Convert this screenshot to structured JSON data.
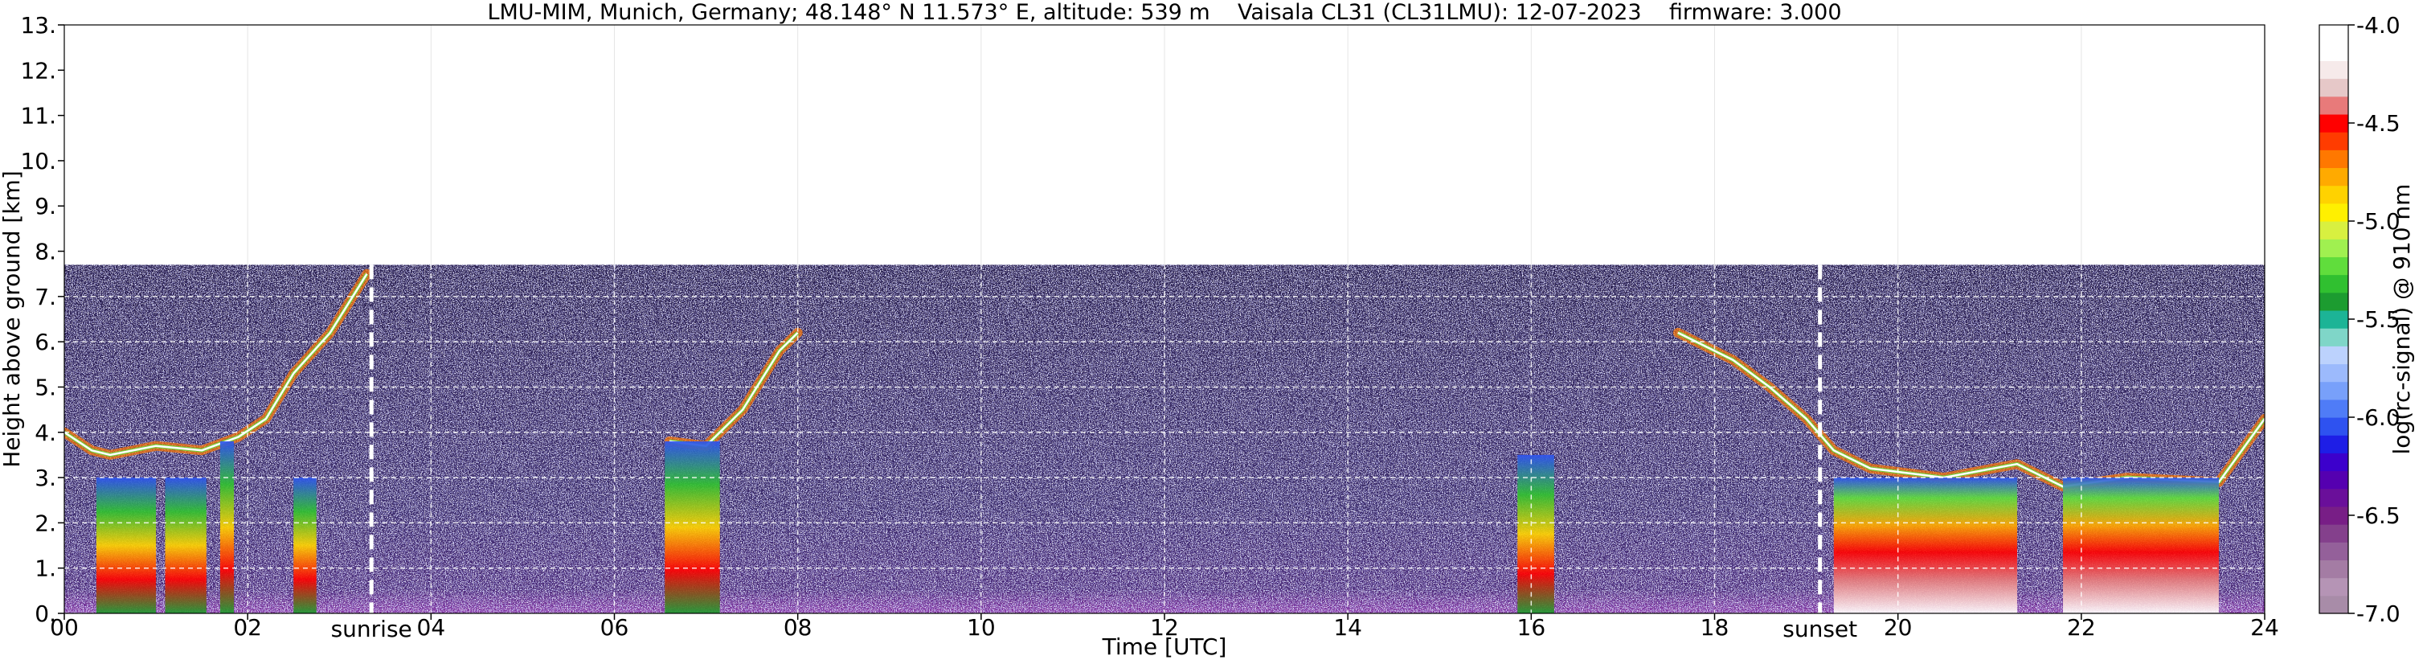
{
  "chart_data": {
    "type": "heatmap",
    "title": "LMU-MIM, Munich, Germany; 48.148° N 11.573° E, altitude: 539 m    Vaisala CL31 (CL31LMU): 12-07-2023    firmware: 3.000",
    "xlabel": "Time [UTC]",
    "ylabel": "Height above ground [km]",
    "xlim": [
      0,
      24
    ],
    "ylim": [
      0,
      13
    ],
    "x_ticks": [
      0,
      2,
      4,
      6,
      8,
      10,
      12,
      14,
      16,
      18,
      20,
      22,
      24
    ],
    "x_tick_labels": [
      "00",
      "02",
      "04",
      "06",
      "08",
      "10",
      "12",
      "14",
      "16",
      "18",
      "20",
      "22",
      "24"
    ],
    "y_ticks": [
      0,
      1,
      2,
      3,
      4,
      5,
      6,
      7,
      8,
      9,
      10,
      11,
      12,
      13
    ],
    "y_tick_labels": [
      "0.",
      "1.",
      "2.",
      "3.",
      "4.",
      "5.",
      "6.",
      "7.",
      "8.",
      "9.",
      "10.",
      "11.",
      "12.",
      "13."
    ],
    "data_top_km": 7.7,
    "colorbar": {
      "label": "log(rc-signal) @ 910 nm",
      "range": [
        -7.0,
        -4.0
      ],
      "ticks": [
        -7.0,
        -6.5,
        -6.0,
        -5.5,
        -5.0,
        -4.5,
        -4.0
      ],
      "tick_labels": [
        "-7.0",
        "-6.5",
        "-6.0",
        "-5.5",
        "-5.0",
        "-4.5",
        "-4.0"
      ],
      "colors": [
        "#a88ca8",
        "#b594b5",
        "#a47ca4",
        "#94609a",
        "#84408c",
        "#781e86",
        "#6a0f9a",
        "#5500b0",
        "#3c00cc",
        "#1e1ee6",
        "#2e52f0",
        "#4f7cf7",
        "#78a0fa",
        "#9cbafc",
        "#bcd2fd",
        "#7fd6c8",
        "#1cb496",
        "#1c9c30",
        "#30c030",
        "#60dd3c",
        "#a0f050",
        "#d8f040",
        "#fff000",
        "#ffd200",
        "#ffaa00",
        "#ff7800",
        "#ff3c00",
        "#ff0000",
        "#e87a7a",
        "#e6c8c8",
        "#f6eaea",
        "#ffffff",
        "#ffffff"
      ]
    },
    "annotations": [
      {
        "type": "vline",
        "x": 3.35,
        "label": "sunrise"
      },
      {
        "type": "vline",
        "x": 19.15,
        "label": "sunset"
      }
    ],
    "features": [
      {
        "kind": "boundary_layer",
        "points": [
          [
            0,
            4.0
          ],
          [
            0.3,
            3.6
          ],
          [
            0.5,
            3.5
          ],
          [
            1.0,
            3.7
          ],
          [
            1.5,
            3.6
          ],
          [
            1.9,
            3.9
          ],
          [
            2.2,
            4.3
          ],
          [
            2.5,
            5.3
          ],
          [
            2.9,
            6.2
          ],
          [
            3.3,
            7.5
          ]
        ]
      },
      {
        "kind": "boundary_layer",
        "points": [
          [
            6.6,
            3.8
          ],
          [
            7.0,
            3.7
          ],
          [
            7.4,
            4.5
          ],
          [
            7.8,
            5.8
          ],
          [
            8.0,
            6.2
          ]
        ]
      },
      {
        "kind": "boundary_layer",
        "points": [
          [
            17.6,
            6.2
          ],
          [
            18.2,
            5.6
          ],
          [
            18.6,
            5.0
          ],
          [
            19.0,
            4.3
          ],
          [
            19.3,
            3.6
          ],
          [
            19.7,
            3.2
          ],
          [
            20.5,
            3.0
          ],
          [
            21.3,
            3.3
          ],
          [
            21.8,
            2.8
          ],
          [
            22.5,
            3.0
          ],
          [
            23.5,
            2.9
          ],
          [
            24,
            4.3
          ]
        ]
      },
      {
        "kind": "cloud_column",
        "x0": 0.35,
        "x1": 1.0,
        "bottom": 0.0,
        "top": 3.0
      },
      {
        "kind": "cloud_column",
        "x0": 1.1,
        "x1": 1.55,
        "bottom": 0.0,
        "top": 3.0
      },
      {
        "kind": "cloud_column",
        "x0": 1.7,
        "x1": 1.85,
        "bottom": 0.0,
        "top": 3.8
      },
      {
        "kind": "cloud_column",
        "x0": 2.5,
        "x1": 2.75,
        "bottom": 0.0,
        "top": 3.0
      },
      {
        "kind": "cloud_column",
        "x0": 6.55,
        "x1": 7.15,
        "bottom": 0.0,
        "top": 3.8
      },
      {
        "kind": "cloud_column",
        "x0": 15.85,
        "x1": 16.25,
        "bottom": 0.0,
        "top": 3.5
      },
      {
        "kind": "cloud_column",
        "x0": 19.3,
        "x1": 21.3,
        "bottom": 0.0,
        "top": 3.0
      },
      {
        "kind": "cloud_column",
        "x0": 21.8,
        "x1": 23.5,
        "bottom": 0.0,
        "top": 3.0
      }
    ]
  }
}
